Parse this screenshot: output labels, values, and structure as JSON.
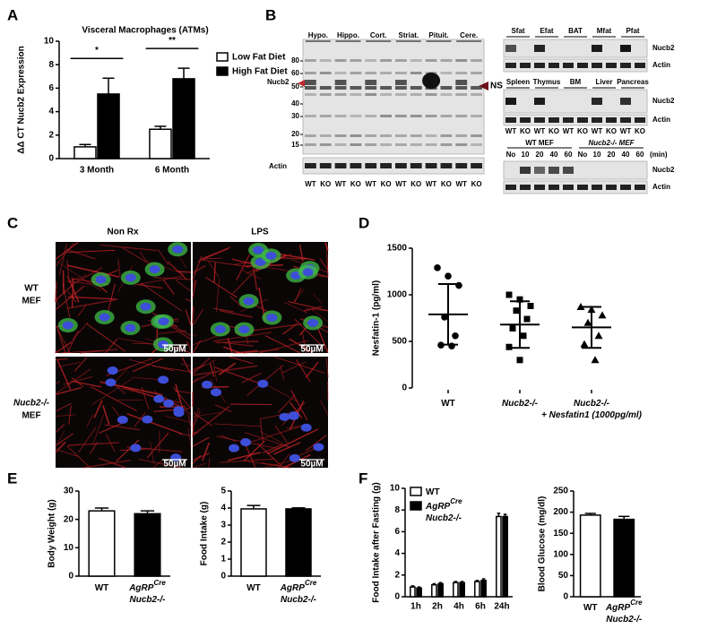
{
  "panel_letters": [
    "A",
    "B",
    "C",
    "D",
    "E",
    "F"
  ],
  "chart_data": [
    {
      "type": "bar",
      "title": "Visceral Macrophages (ATMs)",
      "y_label": "ΔΔ CT Nucb2 Expression",
      "categories": [
        "3 Month",
        "6 Month"
      ],
      "series": [
        {
          "name": "Low Fat Diet",
          "color": "#ffffff",
          "values": [
            1.0,
            2.5
          ],
          "errors": [
            0.2,
            0.25
          ]
        },
        {
          "name": "High Fat Diet",
          "color": "#000000",
          "values": [
            5.5,
            6.8
          ],
          "errors": [
            1.35,
            0.9
          ]
        }
      ],
      "ylim": [
        0,
        10
      ],
      "yticks": [
        0,
        2,
        4,
        6,
        8,
        10
      ],
      "annotations": [
        "*",
        "**"
      ],
      "legend": "right"
    },
    {
      "type": "strip",
      "y_label": "Nesfatin-1 (pg/ml)",
      "categories": [
        [
          "WT"
        ],
        [
          "Nucb2-/-"
        ],
        [
          "Nucb2-/-",
          "+ Nesfatin1 (1000pg/ml)"
        ]
      ],
      "groups": [
        {
          "marker": "circle",
          "values": [
            1290,
            1200,
            1100,
            760,
            560,
            460,
            450
          ]
        },
        {
          "marker": "square",
          "values": [
            1000,
            950,
            880,
            830,
            740,
            640,
            560,
            440,
            300
          ]
        },
        {
          "marker": "triangle",
          "values": [
            870,
            840,
            780,
            700,
            560,
            470,
            300
          ]
        }
      ],
      "means": [
        790,
        680,
        650
      ],
      "sd": [
        325,
        250,
        220
      ],
      "ylim": [
        0,
        1500
      ],
      "yticks": [
        0,
        500,
        1000,
        1500
      ]
    },
    {
      "type": "bar",
      "y_label": "Body Weight (g)",
      "categories": [
        [
          "WT"
        ],
        [
          "AgRP",
          "Cre",
          "Nucb2-/-"
        ]
      ],
      "values": [
        23,
        22
      ],
      "errors": [
        1,
        1
      ],
      "colors": [
        "#ffffff",
        "#000000"
      ],
      "ylim": [
        0,
        30
      ],
      "yticks": [
        0,
        10,
        20,
        30
      ]
    },
    {
      "type": "bar",
      "y_label": "Food Intake (g)",
      "categories": [
        [
          "WT"
        ],
        [
          "AgRP",
          "Cre",
          "Nucb2-/-"
        ]
      ],
      "values": [
        3.95,
        3.95
      ],
      "errors": [
        0.2,
        0.06
      ],
      "colors": [
        "#ffffff",
        "#000000"
      ],
      "ylim": [
        0,
        5
      ],
      "yticks": [
        0,
        1,
        2,
        3,
        4,
        5
      ]
    },
    {
      "type": "bar",
      "y_label": "Food Intake after Fasting (g)",
      "categories": [
        "1h",
        "2h",
        "4h",
        "6h",
        "24h"
      ],
      "series": [
        {
          "name": [
            "WT"
          ],
          "color": "#ffffff",
          "values": [
            0.9,
            1.1,
            1.3,
            1.4,
            7.4
          ],
          "errors": [
            0.1,
            0.1,
            0.1,
            0.1,
            0.3
          ]
        },
        {
          "name": [
            "AgRP",
            "Cre",
            "Nucb2-/-"
          ],
          "color": "#000000",
          "values": [
            0.8,
            1.2,
            1.3,
            1.5,
            7.4
          ],
          "errors": [
            0.1,
            0.1,
            0.1,
            0.15,
            0.2
          ]
        }
      ],
      "ylim": [
        0,
        10
      ],
      "yticks": [
        0,
        2,
        4,
        6,
        8,
        10
      ],
      "legend": "top-left"
    },
    {
      "type": "bar",
      "y_label": "Blood Glucose (mg/dl)",
      "categories": [
        [
          "WT"
        ],
        [
          "AgRP",
          "Cre",
          "Nucb2-/-"
        ]
      ],
      "values": [
        193,
        183
      ],
      "errors": [
        4,
        7
      ],
      "colors": [
        "#ffffff",
        "#000000"
      ],
      "ylim": [
        0,
        250
      ],
      "yticks": [
        0,
        50,
        100,
        150,
        200,
        250
      ]
    }
  ],
  "blot_left": {
    "tissues": [
      "Hypo.",
      "Hippo.",
      "Cort.",
      "Striat.",
      "Pituit.",
      "Cere."
    ],
    "markers": [
      80,
      60,
      50,
      40,
      30,
      20,
      15
    ],
    "nucb2": "Nucb2",
    "ns": "NS",
    "actin": "Actin",
    "lanes": [
      "WT",
      "KO",
      "WT",
      "KO",
      "WT",
      "KO",
      "WT",
      "KO",
      "WT",
      "KO",
      "WT",
      "KO"
    ]
  },
  "blot_right": {
    "fat_tissues": [
      "Sfat",
      "Efat",
      "BAT",
      "Mfat",
      "Pfat"
    ],
    "fat_labels": [
      "Nucb2",
      "Actin"
    ],
    "organ_tissues": [
      "Spleen",
      "Thymus",
      "BM",
      "Liver",
      "Pancreas"
    ],
    "organ_labels": [
      "Nucb2",
      "Actin"
    ],
    "lanes": [
      "WT",
      "KO",
      "WT",
      "KO",
      "WT",
      "KO",
      "WT",
      "KO",
      "WT",
      "KO"
    ],
    "mef_groups": [
      "WT MEF",
      "Nucb2-/- MEF"
    ],
    "timepoints": [
      "No",
      "10",
      "20",
      "40",
      "60",
      "No",
      "10",
      "20",
      "40",
      "60"
    ],
    "time_unit": "(min)",
    "mef_labels": [
      "Nucb2",
      "Actin"
    ]
  },
  "micrographs": {
    "columns": [
      "Non Rx",
      "LPS"
    ],
    "rows": [
      [
        "WT",
        "MEF"
      ],
      [
        "Nucb2-/-",
        "MEF"
      ]
    ],
    "scale_bars": [
      "50µM",
      "50µM",
      "50µM",
      "50µM"
    ]
  }
}
